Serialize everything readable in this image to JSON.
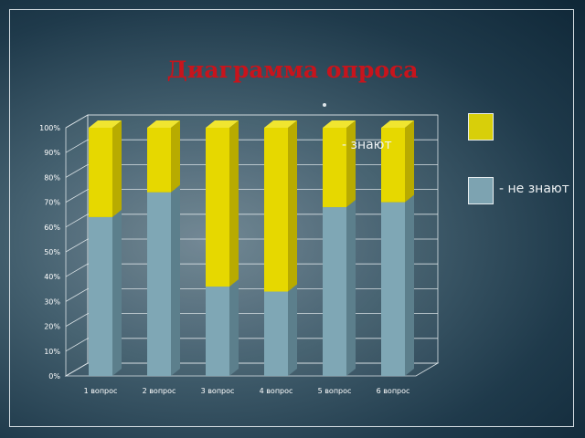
{
  "title": "Диаграмма опроса",
  "legend": {
    "known_label": "- знают",
    "unknown_label": "-  не знают"
  },
  "colors": {
    "known": "#e6d800",
    "known_dark": "#b8ab00",
    "known_top": "#f0e530",
    "unknown": "#7fa7b5",
    "unknown_dark": "#5c7f8c",
    "unknown_top": "#9bbcc7"
  },
  "chart_data": {
    "type": "bar",
    "stacked": "percent",
    "categories": [
      "1 вопрос",
      "2 вопрос",
      "3 вопрос",
      "4 вопрос",
      "5 вопрос",
      "6 вопрос"
    ],
    "series": [
      {
        "name": "-  не знают",
        "values": [
          64,
          74,
          36,
          34,
          68,
          70
        ]
      },
      {
        "name": "- знают",
        "values": [
          36,
          26,
          64,
          66,
          32,
          30
        ]
      }
    ],
    "y_ticks": [
      "0%",
      "10%",
      "20%",
      "30%",
      "40%",
      "50%",
      "60%",
      "70%",
      "80%",
      "90%",
      "100%"
    ],
    "ylim": [
      0,
      100
    ],
    "grid": true,
    "legend_position": "right"
  }
}
